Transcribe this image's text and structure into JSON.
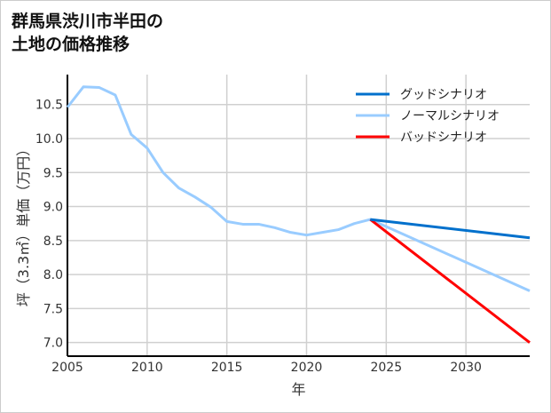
{
  "title_lines": [
    "群馬県渋川市半田の",
    "土地の価格推移"
  ],
  "chart_data": {
    "type": "line",
    "title": "群馬県渋川市半田の土地の価格推移",
    "xlabel": "年",
    "ylabel": "坪（3.3㎡）単価（万円）",
    "xlim": [
      2005,
      2034
    ],
    "ylim": [
      6.8,
      10.94
    ],
    "xticks": [
      2005,
      2010,
      2015,
      2020,
      2025,
      2030
    ],
    "yticks": [
      7.0,
      7.5,
      8.0,
      8.5,
      9.0,
      9.5,
      10.0,
      10.5
    ],
    "grid": true,
    "legend_position": "top-right",
    "series": [
      {
        "name": "グッドシナリオ",
        "color": "#0070cc",
        "x": [
          2024,
          2034
        ],
        "y": [
          8.81,
          8.54
        ]
      },
      {
        "name": "ノーマルシナリオ",
        "color": "#99ccff",
        "x": [
          2005,
          2006,
          2007,
          2008,
          2009,
          2010,
          2011,
          2012,
          2013,
          2014,
          2015,
          2016,
          2017,
          2018,
          2019,
          2020,
          2021,
          2022,
          2023,
          2024,
          2034
        ],
        "y": [
          10.46,
          10.76,
          10.75,
          10.64,
          10.06,
          9.86,
          9.5,
          9.27,
          9.14,
          8.99,
          8.78,
          8.74,
          8.74,
          8.69,
          8.62,
          8.58,
          8.62,
          8.66,
          8.75,
          8.81,
          7.76
        ]
      },
      {
        "name": "バッドシナリオ",
        "color": "#ff0000",
        "x": [
          2024,
          2034
        ],
        "y": [
          8.81,
          7.0
        ]
      }
    ]
  }
}
